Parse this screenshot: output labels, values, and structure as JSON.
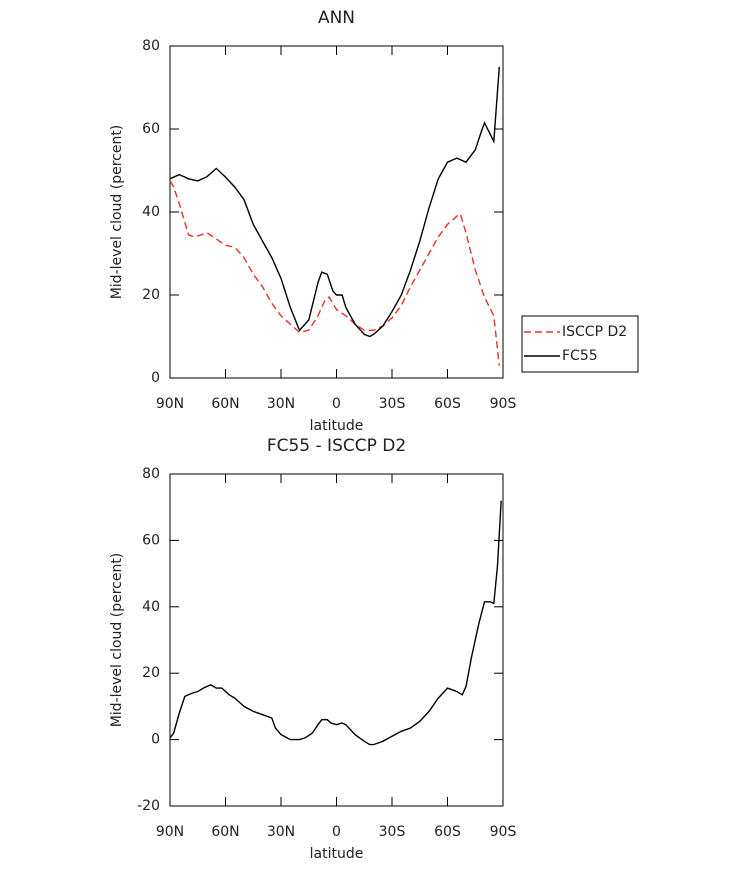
{
  "chart_data": [
    {
      "type": "line",
      "title": "ANN",
      "x_label": "latitude",
      "y_label": "Mid-level cloud (percent)",
      "xlim": [
        90,
        -90
      ],
      "xticks": [
        {
          "value": 90,
          "label": "90N"
        },
        {
          "value": 60,
          "label": "60N"
        },
        {
          "value": 30,
          "label": "30N"
        },
        {
          "value": 0,
          "label": "0"
        },
        {
          "value": -30,
          "label": "30S"
        },
        {
          "value": -60,
          "label": "60S"
        },
        {
          "value": -90,
          "label": "90S"
        }
      ],
      "ylim": [
        0,
        80
      ],
      "yticks": [
        0,
        20,
        40,
        60,
        80
      ],
      "legend": "right",
      "series": [
        {
          "name": "ISCCP D2",
          "color": "#e8302a",
          "style": "dashed",
          "x": [
            90,
            88,
            85,
            80,
            77,
            73,
            70,
            65,
            60,
            55,
            50,
            45,
            40,
            35,
            30,
            25,
            20,
            15,
            10,
            6,
            4,
            0,
            -5,
            -10,
            -15,
            -20,
            -25,
            -30,
            -35,
            -40,
            -45,
            -50,
            -55,
            -60,
            -65,
            -67,
            -70,
            -75,
            -80,
            -85,
            -88
          ],
          "values": [
            47.5,
            46,
            42,
            34.5,
            34,
            34.5,
            35,
            33.5,
            32,
            31.5,
            29,
            25,
            22,
            18,
            15,
            13,
            11,
            11.5,
            15,
            19,
            19.5,
            16.5,
            15,
            13,
            11.5,
            11.5,
            12.5,
            14.5,
            17.5,
            22,
            26,
            30,
            34,
            37,
            39,
            39.5,
            35,
            26,
            19.5,
            15,
            3
          ]
        },
        {
          "name": "FC55",
          "color": "#000000",
          "style": "solid",
          "x": [
            90,
            85,
            80,
            75,
            70,
            65,
            60,
            55,
            50,
            45,
            40,
            35,
            30,
            25,
            20,
            15,
            10,
            8,
            5,
            2,
            0,
            -3,
            -5,
            -10,
            -15,
            -18,
            -20,
            -25,
            -30,
            -35,
            -40,
            -45,
            -50,
            -55,
            -60,
            -65,
            -70,
            -75,
            -78,
            -80,
            -85,
            -88
          ],
          "values": [
            48,
            49,
            48,
            47.5,
            48.5,
            50.5,
            48.4,
            46,
            43,
            37,
            33,
            29,
            24,
            17,
            11.5,
            14,
            23,
            25.5,
            25,
            21,
            20,
            20,
            17,
            13,
            10.5,
            10,
            10.5,
            12.5,
            16,
            20,
            26,
            33,
            41,
            48,
            52,
            53,
            52,
            55,
            59,
            61.5,
            57,
            75
          ]
        }
      ]
    },
    {
      "type": "line",
      "title": "FC55 - ISCCP D2",
      "x_label": "latitude",
      "y_label": "Mid-level cloud (percent)",
      "xlim": [
        90,
        -90
      ],
      "xticks": [
        {
          "value": 90,
          "label": "90N"
        },
        {
          "value": 60,
          "label": "60N"
        },
        {
          "value": 30,
          "label": "30N"
        },
        {
          "value": 0,
          "label": "0"
        },
        {
          "value": -30,
          "label": "30S"
        },
        {
          "value": -60,
          "label": "60S"
        },
        {
          "value": -90,
          "label": "90S"
        }
      ],
      "ylim": [
        -20,
        80
      ],
      "yticks": [
        -20,
        0,
        20,
        40,
        60,
        80
      ],
      "series": [
        {
          "color": "#000000",
          "style": "solid",
          "x": [
            90,
            88,
            85,
            82,
            78,
            75,
            72,
            68,
            65,
            62,
            58,
            55,
            50,
            45,
            40,
            35,
            33,
            30,
            25,
            20,
            17,
            13,
            10,
            8,
            5,
            3,
            0,
            -3,
            -5,
            -10,
            -15,
            -18,
            -20,
            -25,
            -30,
            -35,
            -40,
            -45,
            -50,
            -55,
            -60,
            -65,
            -68,
            -70,
            -73,
            -77,
            -80,
            -83,
            -85,
            -87,
            -89
          ],
          "values": [
            0.5,
            2,
            8,
            13,
            14,
            14.5,
            15.5,
            16.5,
            15.5,
            15.5,
            13.5,
            12.5,
            10,
            8.5,
            7.5,
            6.5,
            3.5,
            1.5,
            0,
            0,
            0.5,
            2,
            4.5,
            6,
            6,
            5,
            4.5,
            5,
            4.5,
            1.5,
            -0.5,
            -1.5,
            -1.5,
            -0.5,
            1,
            2.5,
            3.5,
            5.5,
            8.5,
            12.5,
            15.5,
            14.5,
            13.5,
            16,
            25,
            35,
            41.5,
            41.5,
            41,
            52,
            72
          ]
        }
      ]
    }
  ]
}
